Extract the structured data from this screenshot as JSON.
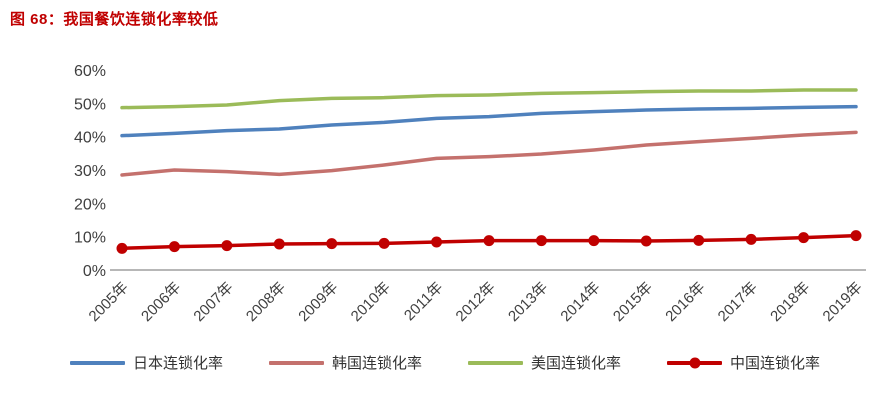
{
  "title": "图 68：我国餐饮连锁化率较低",
  "title_color": "#c00000",
  "chart_data": {
    "type": "line",
    "categories": [
      "2005年",
      "2006年",
      "2007年",
      "2008年",
      "2009年",
      "2010年",
      "2011年",
      "2012年",
      "2013年",
      "2014年",
      "2015年",
      "2016年",
      "2017年",
      "2018年",
      "2019年"
    ],
    "series": [
      {
        "name": "日本连锁化率",
        "color": "#4f81bd",
        "marker": false,
        "values": [
          40.3,
          41.0,
          41.8,
          42.3,
          43.5,
          44.3,
          45.5,
          46.0,
          47.0,
          47.5,
          48.0,
          48.3,
          48.5,
          48.8,
          49.0
        ]
      },
      {
        "name": "韩国连锁化率",
        "color": "#c4716d",
        "marker": false,
        "values": [
          28.5,
          30.0,
          29.5,
          28.7,
          29.8,
          31.5,
          33.5,
          34.0,
          34.8,
          36.0,
          37.5,
          38.5,
          39.5,
          40.5,
          41.3
        ]
      },
      {
        "name": "美国连锁化率",
        "color": "#9bbb59",
        "marker": false,
        "values": [
          48.7,
          49.0,
          49.5,
          50.8,
          51.5,
          51.7,
          52.3,
          52.5,
          53.0,
          53.2,
          53.5,
          53.7,
          53.7,
          54.0,
          54.0
        ]
      },
      {
        "name": "中国连锁化率",
        "color": "#c00000",
        "marker": true,
        "values": [
          6.5,
          7.0,
          7.3,
          7.8,
          7.9,
          8.0,
          8.4,
          8.8,
          8.8,
          8.8,
          8.7,
          8.9,
          9.2,
          9.7,
          10.3
        ]
      }
    ],
    "title": "",
    "xlabel": "",
    "ylabel": "",
    "ylim": [
      0,
      60
    ],
    "ytick_step": 10,
    "ytick_suffix": "%",
    "grid": false,
    "legend_position": "bottom",
    "axis_color": "#8c8c8c"
  }
}
